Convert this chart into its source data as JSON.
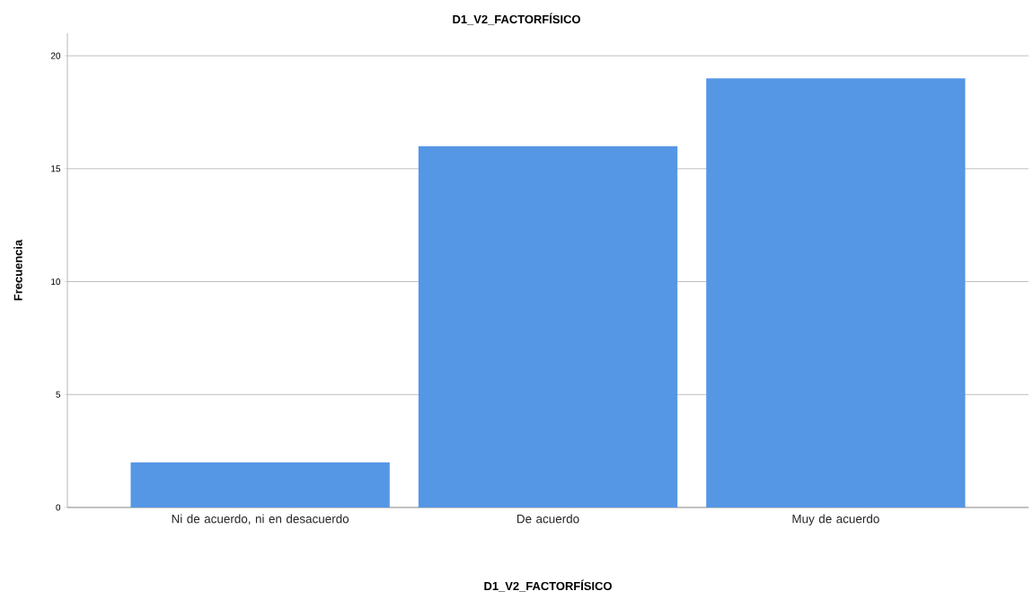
{
  "chart_data": {
    "type": "bar",
    "title": "D1_V2_FACTORFÍSICO",
    "xlabel": "D1_V2_FACTORFÍSICO",
    "ylabel": "Frecuencia",
    "categories": [
      "Ni de acuerdo, ni en desacuerdo",
      "De acuerdo",
      "Muy de acuerdo"
    ],
    "values": [
      2,
      16,
      19
    ],
    "color": "#5596e5",
    "ylim": [
      0,
      21
    ],
    "yticks": [
      0,
      5,
      10,
      15,
      20
    ],
    "grid": "y"
  }
}
